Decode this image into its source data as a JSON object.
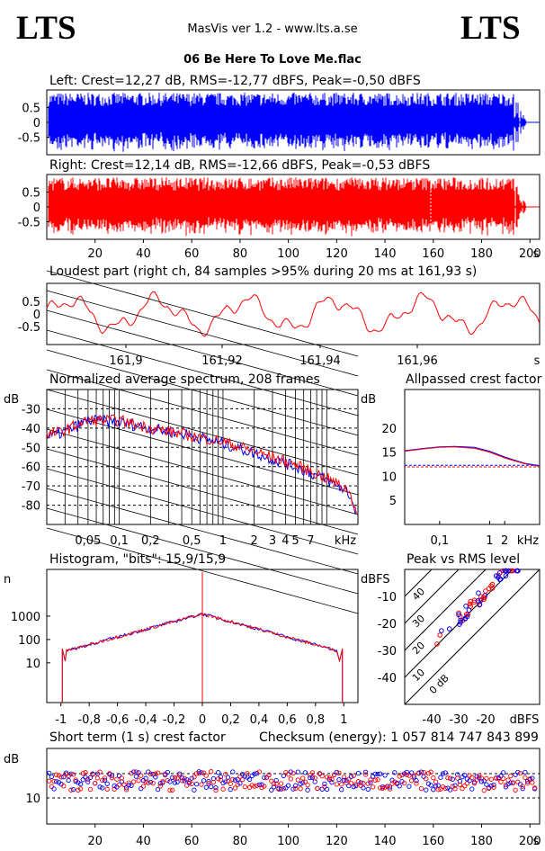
{
  "header": {
    "logo_left": "LTS",
    "logo_right": "LTS",
    "app": "MasVis ver 1.2 - www.lts.a.se",
    "file": "06 Be Here To Love Me.flac"
  },
  "colors": {
    "left": "#0000ff",
    "right": "#ff0000"
  },
  "panels": {
    "left_title": "Left: Crest=12,27 dB, RMS=-12,77 dBFS, Peak=-0,50 dBFS",
    "right_title": "Right: Crest=12,14 dB, RMS=-12,66 dBFS, Peak=-0,53 dBFS",
    "loud_title": "Loudest part (right ch, 84 samples >95% during 20 ms at 161,93 s)",
    "spectrum_title": "Normalized average spectrum, 208 frames",
    "allpass_title": "Allpassed crest factor",
    "histogram_title": "Histogram, \"bits\": 15,9/15,9",
    "peakrms_title": "Peak vs RMS level",
    "crest_title": "Short term (1 s) crest factor",
    "checksum": "Checksum (energy):  1 057 814 747 843 899"
  },
  "chart_data": [
    {
      "type": "area",
      "name": "waveform-left",
      "yticks": [
        "0.5",
        "0",
        "-0.5"
      ],
      "ylim": [
        -1,
        1
      ],
      "duration_s": 204,
      "peak_dbfs": -0.5
    },
    {
      "type": "area",
      "name": "waveform-right",
      "yticks": [
        "0.5",
        "0",
        "-0.5"
      ],
      "ylim": [
        -1,
        1
      ],
      "duration_s": 204,
      "peak_dbfs": -0.53,
      "xticks": [
        "20",
        "40",
        "60",
        "80",
        "100",
        "120",
        "140",
        "160",
        "180",
        "200"
      ],
      "xunit": "s",
      "marker_s": 161.93
    },
    {
      "type": "line",
      "name": "loudest-part",
      "xticks": [
        "161,9",
        "161,92",
        "161,94",
        "161,96"
      ],
      "xunit": "s",
      "yticks": [
        "0.5",
        "0",
        "-0.5"
      ],
      "xlim": [
        161.88,
        161.98
      ]
    },
    {
      "type": "line",
      "name": "spectrum",
      "ylabel": "dB",
      "yticks": [
        "-30",
        "-40",
        "-50",
        "-60",
        "-70",
        "-80"
      ],
      "xticks": [
        "0,05",
        "0,1",
        "0,2",
        "0,5",
        "1",
        "2",
        "3",
        "4",
        "5",
        "7"
      ],
      "xunit": "kHz",
      "x_khz": [
        0.02,
        0.03,
        0.05,
        0.1,
        0.2,
        0.5,
        1,
        2,
        5,
        10,
        16,
        20
      ],
      "series": [
        {
          "values": [
            -45,
            -42,
            -36,
            -37,
            -40,
            -44,
            -48,
            -53,
            -60,
            -67,
            -73,
            -85
          ]
        },
        {
          "values": [
            -44,
            -41,
            -36,
            -36,
            -40,
            -44,
            -47,
            -52,
            -59,
            -66,
            -72,
            -84
          ]
        }
      ]
    },
    {
      "type": "line",
      "name": "allpassed-crest",
      "ylabel": "dB",
      "yticks": [
        "20",
        "15",
        "10",
        "5"
      ],
      "xticks": [
        "0,1",
        "1",
        "2"
      ],
      "xunit": "kHz",
      "x_khz": [
        0.02,
        0.05,
        0.1,
        0.2,
        0.5,
        1,
        2,
        5,
        10
      ],
      "series": [
        {
          "values": [
            15.3,
            15.8,
            16.1,
            16.2,
            16.0,
            15.2,
            14.0,
            12.7,
            12.2
          ]
        },
        {
          "values": [
            15.2,
            15.7,
            16.0,
            16.1,
            15.8,
            15.0,
            13.8,
            12.6,
            12.1
          ]
        }
      ],
      "crest_left": 12.27,
      "crest_right": 12.14
    },
    {
      "type": "line",
      "name": "histogram",
      "ylabel": "n",
      "yticks": [
        "1000",
        "100",
        "10"
      ],
      "xticks": [
        "-1",
        "-0,8",
        "-0,6",
        "-0,4",
        "-0,2",
        "0",
        "0,2",
        "0,4",
        "0,6",
        "0,8",
        "1"
      ]
    },
    {
      "type": "scatter",
      "name": "peak-vs-rms",
      "ylabel": "dBFS",
      "yticks": [
        "-10",
        "-20",
        "-30",
        "-40"
      ],
      "xticks": [
        "-40",
        "-30",
        "-20"
      ],
      "xunit": "dBFS",
      "diagonal_labels": [
        "0 dB",
        "10",
        "20",
        "30",
        "40"
      ]
    },
    {
      "type": "scatter",
      "name": "short-term-crest",
      "ylabel": "dB",
      "yticks": [
        "10"
      ],
      "xticks": [
        "20",
        "40",
        "60",
        "80",
        "100",
        "120",
        "140",
        "160",
        "180",
        "200"
      ],
      "xunit": "s"
    }
  ]
}
